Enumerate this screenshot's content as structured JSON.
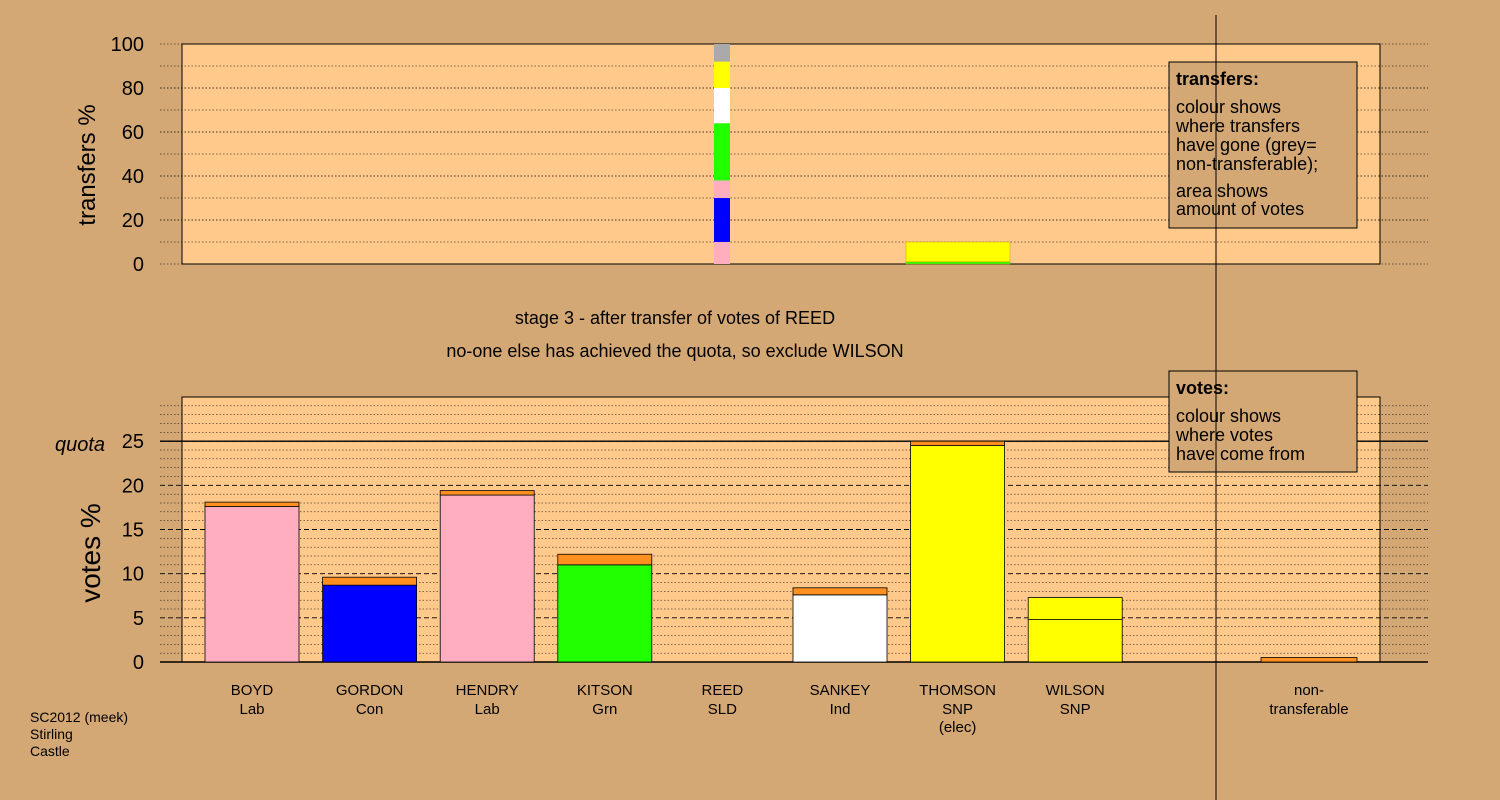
{
  "colors": {
    "page": "#d4a874",
    "plot_bg": "#ffc98c",
    "Lab": "#ffaec0",
    "Con": "#0000ff",
    "Grn": "#22ff00",
    "SLD": "#ffaec0",
    "Ind": "#ffffff",
    "SNP": "#ffff00",
    "transfer": "#ff9020",
    "nontransferable": "#aaaaaa"
  },
  "chart_data": [
    {
      "type": "bar",
      "name": "transfers",
      "ylabel": "transfers %",
      "ylim": [
        0,
        100
      ],
      "yticks": [
        0,
        20,
        40,
        60,
        80,
        100
      ],
      "transfer_column": {
        "candidate": "REED",
        "segments": [
          {
            "to": "BOYD",
            "from": 0,
            "to_value": 10,
            "color_key": "Lab"
          },
          {
            "to": "GORDON",
            "from": 10,
            "to_value": 30,
            "color_key": "Con"
          },
          {
            "to": "HENDRY",
            "from": 30,
            "to_value": 38,
            "color_key": "Lab"
          },
          {
            "to": "KITSON",
            "from": 38,
            "to_value": 64,
            "color_key": "Grn"
          },
          {
            "to": "SANKEY",
            "from": 64,
            "to_value": 80,
            "color_key": "Ind"
          },
          {
            "to": "THOMSON",
            "from": 80,
            "to_value": 83,
            "color_key": "SNP"
          },
          {
            "to": "WILSON",
            "from": 83,
            "to_value": 92,
            "color_key": "SNP"
          },
          {
            "to": "non-transferable",
            "from": 92,
            "to_value": 100,
            "color_key": "nontransferable"
          }
        ]
      },
      "surplus_block": {
        "candidate": "THOMSON",
        "segments": [
          {
            "from": 0,
            "to_value": 1,
            "color_key": "Grn"
          },
          {
            "from": 1,
            "to_value": 10,
            "color_key": "SNP"
          }
        ]
      },
      "legend": {
        "position": "top-right",
        "title": "transfers:",
        "lines1": [
          "colour shows",
          "where transfers",
          "have gone (grey=",
          "non-transferable);"
        ],
        "lines2": [
          "area shows",
          "amount of votes"
        ]
      }
    },
    {
      "type": "bar",
      "name": "votes",
      "ylabel": "votes %",
      "ylim": [
        0,
        30
      ],
      "yticks": [
        0,
        5,
        10,
        15,
        20,
        25
      ],
      "quota": 25,
      "quota_label": "quota",
      "categories": [
        {
          "name": "BOYD",
          "party": "Lab",
          "color_key": "Lab",
          "base": 17.6,
          "transfer": 0.5
        },
        {
          "name": "GORDON",
          "party": "Con",
          "color_key": "Con",
          "base": 8.7,
          "transfer": 0.9
        },
        {
          "name": "HENDRY",
          "party": "Lab",
          "color_key": "Lab",
          "base": 18.9,
          "transfer": 0.5
        },
        {
          "name": "KITSON",
          "party": "Grn",
          "color_key": "Grn",
          "base": 11.0,
          "transfer": 1.2
        },
        {
          "name": "REED",
          "party": "SLD",
          "color_key": "SLD",
          "base": 0,
          "transfer": 0
        },
        {
          "name": "SANKEY",
          "party": "Ind",
          "color_key": "Ind",
          "base": 7.6,
          "transfer": 0.8
        },
        {
          "name": "THOMSON",
          "party": "SNP",
          "extra": "(elec)",
          "color_key": "SNP",
          "base": 24.5,
          "transfer": 0.5
        },
        {
          "name": "WILSON",
          "party": "SNP",
          "color_key": "SNP",
          "base": 4.8,
          "second": 2.5,
          "transfer": 0
        },
        {
          "name": "",
          "party": "",
          "color_key": "SNP",
          "base": 0,
          "transfer": 0
        }
      ],
      "nontransferable": {
        "label1": "non-",
        "label2": "transferable",
        "value": 0.5
      },
      "legend": {
        "position": "top-right",
        "title": "votes:",
        "lines": [
          "colour shows",
          "where votes",
          "have come from"
        ]
      }
    }
  ],
  "caption": {
    "line1": "stage 3 - after transfer of votes of REED",
    "line2": "no-one else has achieved the quota, so exclude WILSON"
  },
  "footer": [
    "SC2012 (meek)",
    "Stirling",
    "Castle"
  ]
}
